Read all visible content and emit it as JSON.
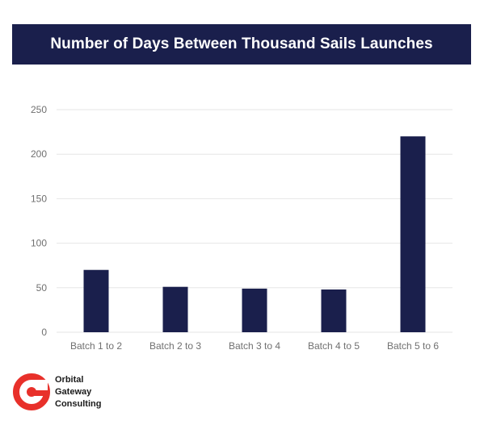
{
  "chart_data": {
    "type": "bar",
    "title": "Number of Days Between Thousand Sails Launches",
    "categories": [
      "Batch 1 to 2",
      "Batch 2 to 3",
      "Batch 3 to 4",
      "Batch 4 to 5",
      "Batch 5 to 6"
    ],
    "values": [
      70,
      51,
      49,
      48,
      220
    ],
    "ylim": [
      0,
      250
    ],
    "yticks": [
      0,
      50,
      100,
      150,
      200,
      250
    ],
    "grid": true,
    "bar_color": "#1a1f4c",
    "grid_color": "#e6e6e6"
  },
  "logo": {
    "line1": "Orbital",
    "line2": "Gateway",
    "line3": "Consulting",
    "accent_color": "#e8302a"
  }
}
